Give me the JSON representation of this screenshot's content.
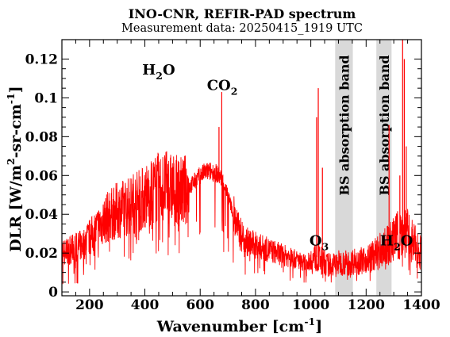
{
  "chart_data": {
    "type": "line",
    "title": "INO-CNR, REFIR-PAD spectrum",
    "subtitle": "Measurement data: 20250415_1919 UTC",
    "xlabel": {
      "main": "Wavenumber [cm",
      "sup": "-1",
      "end": "]"
    },
    "ylabel": {
      "a": "DLR [W/m",
      "sup1": "2",
      "b": "-sr-cm",
      "sup2": "-1",
      "c": "]"
    },
    "xlim": [
      100,
      1400
    ],
    "ylim": [
      -0.002,
      0.13
    ],
    "x_ticks": [
      200,
      400,
      600,
      800,
      1000,
      1200,
      1400
    ],
    "y_ticks": [
      0,
      0.02,
      0.04,
      0.06,
      0.08,
      0.1,
      0.12
    ],
    "y_tick_labels": [
      "0",
      "0.02",
      "0.04",
      "0.06",
      "0.08",
      "0.1",
      "0.12"
    ],
    "grid": false,
    "line_color": "#ff0000",
    "band_color": "#d9d9d9",
    "bands": [
      {
        "x0": 1088,
        "x1": 1152,
        "label": "BS absorption band"
      },
      {
        "x0": 1237,
        "x1": 1292,
        "label": "BS absorption band"
      }
    ],
    "annotations": [
      {
        "id": "h2o-left",
        "x": 450,
        "y": 0.112,
        "main": "H",
        "sub": "2",
        "end": "O"
      },
      {
        "id": "co2",
        "x": 680,
        "y": 0.104,
        "main": "CO",
        "sub": "2",
        "end": ""
      },
      {
        "id": "o3",
        "x": 1030,
        "y": 0.024,
        "main": "O",
        "sub": "3",
        "end": ""
      },
      {
        "id": "h2o-right",
        "x": 1310,
        "y": 0.024,
        "main": "H",
        "sub": "2",
        "end": "O"
      }
    ],
    "series": [
      {
        "x": [
          100,
          120,
          140,
          160,
          180,
          200,
          220,
          240,
          260,
          280,
          300,
          320,
          340,
          360,
          380,
          400,
          420,
          440,
          460,
          480,
          500,
          520,
          540,
          560,
          580,
          600,
          620,
          640,
          660,
          680,
          700,
          720,
          740,
          760,
          780,
          800,
          820,
          840,
          860,
          880,
          900,
          920,
          940,
          960,
          980,
          1000,
          1020,
          1040,
          1060,
          1080,
          1100,
          1120,
          1140,
          1160,
          1180,
          1200,
          1220,
          1240,
          1260,
          1280,
          1300,
          1320,
          1340,
          1360,
          1380,
          1400
        ],
        "y": [
          0.02,
          0.021,
          0.022,
          0.023,
          0.025,
          0.028,
          0.031,
          0.035,
          0.038,
          0.04,
          0.042,
          0.043,
          0.044,
          0.046,
          0.047,
          0.049,
          0.051,
          0.053,
          0.054,
          0.054,
          0.053,
          0.052,
          0.052,
          0.054,
          0.057,
          0.06,
          0.062,
          0.062,
          0.061,
          0.058,
          0.05,
          0.04,
          0.031,
          0.027,
          0.025,
          0.024,
          0.023,
          0.022,
          0.021,
          0.02,
          0.019,
          0.018,
          0.017,
          0.016,
          0.015,
          0.016,
          0.018,
          0.016,
          0.014,
          0.014,
          0.015,
          0.015,
          0.015,
          0.016,
          0.016,
          0.017,
          0.018,
          0.02,
          0.022,
          0.024,
          0.027,
          0.03,
          0.031,
          0.028,
          0.023,
          0.02
        ]
      }
    ],
    "spikes": [
      {
        "x": 678,
        "y": 0.103
      },
      {
        "x": 668,
        "y": 0.085
      },
      {
        "x": 1027,
        "y": 0.105
      },
      {
        "x": 1021,
        "y": 0.09
      },
      {
        "x": 1042,
        "y": 0.064
      },
      {
        "x": 1283,
        "y": 0.086
      },
      {
        "x": 1332,
        "y": 0.13
      },
      {
        "x": 1338,
        "y": 0.12
      },
      {
        "x": 1345,
        "y": 0.075
      },
      {
        "x": 1322,
        "y": 0.06
      }
    ]
  }
}
